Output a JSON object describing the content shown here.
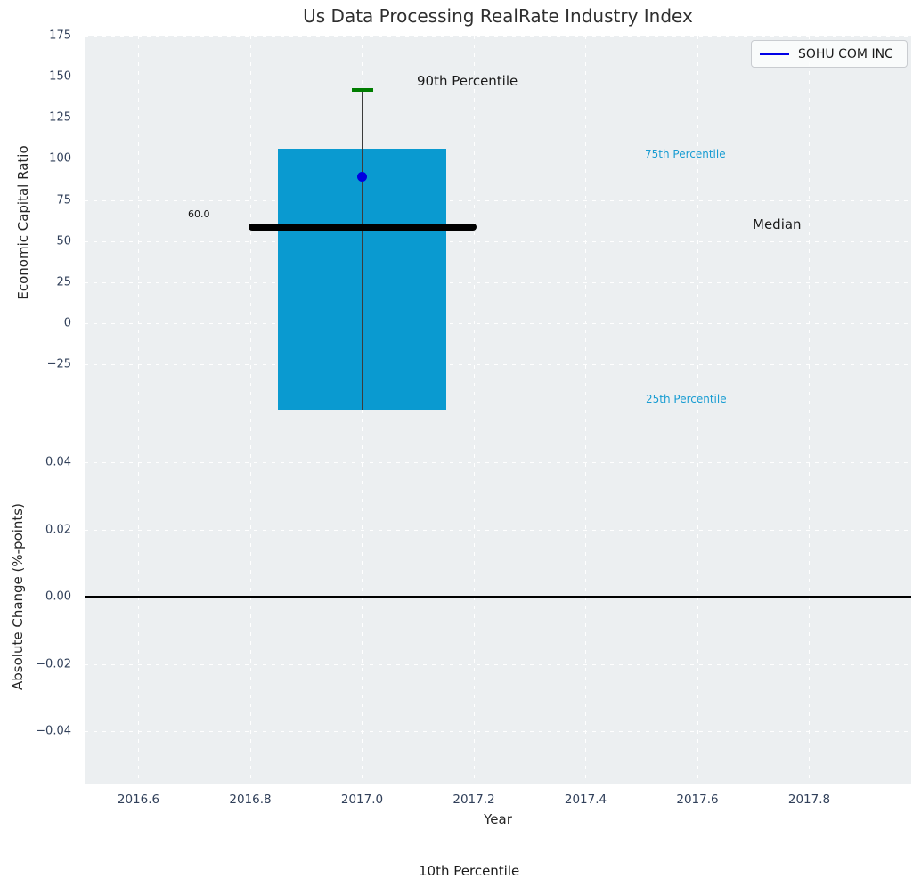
{
  "title": "Us Data Processing RealRate Industry Index",
  "legend": {
    "label": "SOHU COM INC",
    "line_color": "#0000e6"
  },
  "colors": {
    "figure_bg": "#ffffff",
    "plot_bg": "#eceff1",
    "grid": "#ffffff",
    "bar": "#0a9ad0",
    "percentile_label": "#189cd2",
    "whisker_cap_green": "#007d00",
    "data_dot_blue": "#0000e0",
    "median_line": "#000000",
    "zero_line": "#000000",
    "tick_label": "#31405a"
  },
  "annotations": {
    "p90": "90th Percentile",
    "p75": "75th Percentile",
    "median": "Median",
    "p25": "25th Percentile",
    "p10": "10th Percentile",
    "median_value_label": "60.0"
  },
  "chart_data": [
    {
      "type": "bar",
      "title": "Us Data Processing RealRate Industry Index",
      "ylabel": "Economic Capital Ratio",
      "ytick_values": [
        175,
        150,
        125,
        100,
        75,
        50,
        25,
        0,
        -25
      ],
      "ytick_labels": [
        "175",
        "150",
        "125",
        "100",
        "75",
        "50",
        "25",
        "0",
        "−25"
      ],
      "ylim": [
        -52.6,
        175
      ],
      "xlim": [
        2016.5,
        2017.98
      ],
      "grid": true,
      "legend": [
        "SOHU COM INC"
      ],
      "legend_position": "upper right",
      "series": [
        {
          "name": "SOHU COM INC",
          "x": 2017.0,
          "economic_capital_ratio": 89
        }
      ],
      "bar": {
        "x": 2017.0,
        "width_years": 0.3,
        "top_value": 106,
        "bottom": "clipped below visible axis"
      },
      "percentiles": {
        "p90": 142,
        "p75": 106,
        "median": 60.0
      },
      "median_value_label": "60.0",
      "annotations": [
        "90th Percentile",
        "75th Percentile",
        "Median",
        "25th Percentile"
      ]
    },
    {
      "type": "line",
      "ylabel": "Absolute Change (%-points)",
      "xlabel": "Year",
      "ytick_values": [
        0.04,
        0.02,
        0,
        -0.02,
        -0.04
      ],
      "ytick_labels": [
        "0.04",
        "0.02",
        "0.00",
        "−0.02",
        "−0.04"
      ],
      "xtick_values": [
        2016.6,
        2016.8,
        2017.0,
        2017.2,
        2017.4,
        2017.6,
        2017.8
      ],
      "xtick_labels": [
        "2016.6",
        "2016.8",
        "2017.0",
        "2017.2",
        "2017.4",
        "2017.6",
        "2017.8"
      ],
      "ylim": [
        -0.0556,
        0.0556
      ],
      "zero_line": 0.0,
      "grid": true,
      "annotation_below": "10th Percentile"
    }
  ]
}
